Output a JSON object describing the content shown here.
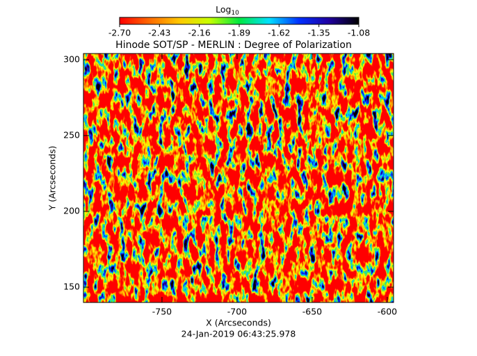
{
  "chart_data": {
    "type": "heatmap",
    "title": "Hinode SOT/SP - MERLIN : Degree of Polarization",
    "x_label": "X (Arcseconds)",
    "y_label": "Y (Arcseconds)",
    "footer": "24-Jan-2019 06:43:25.978",
    "xlim": [
      -802.3,
      -595.8
    ],
    "ylim": [
      139.9,
      304.1
    ],
    "xticks": [
      -750,
      -700,
      -650,
      -600
    ],
    "yticks": [
      150,
      200,
      250,
      300
    ],
    "colorbar": {
      "label": "Log",
      "label_subscript": "10",
      "lim": [
        -2.7,
        -1.08
      ],
      "ticks": [
        {
          "value": -2.7,
          "label": "-2.70"
        },
        {
          "value": -2.43,
          "label": "-2.43"
        },
        {
          "value": -2.16,
          "label": "-2.16"
        },
        {
          "value": -1.89,
          "label": "-1.89"
        },
        {
          "value": -1.62,
          "label": "-1.62"
        },
        {
          "value": -1.35,
          "label": "-1.35"
        },
        {
          "value": -1.08,
          "label": "-1.08"
        }
      ],
      "colors": [
        "#ff0000",
        "#ff6a00",
        "#ffc800",
        "#c8ff00",
        "#00e840",
        "#00e0ff",
        "#0030ff",
        "#2000a0",
        "#000000"
      ]
    }
  }
}
